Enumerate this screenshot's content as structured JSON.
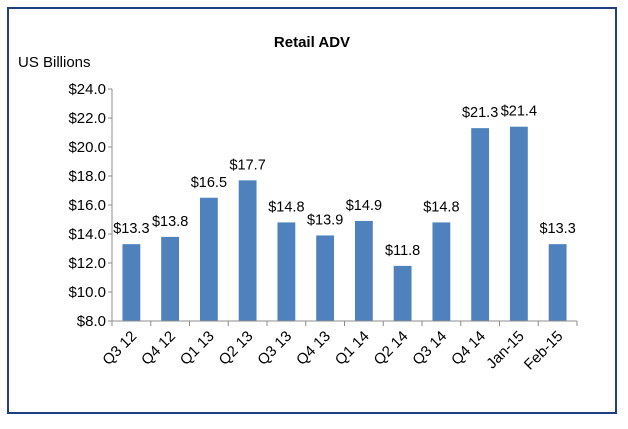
{
  "chart_data": {
    "type": "bar",
    "title": "Retail ADV",
    "ylabel": "US Billions",
    "xlabel": "",
    "categories": [
      "Q3 12",
      "Q4 12",
      "Q1 13",
      "Q2 13",
      "Q3 13",
      "Q4 13",
      "Q1 14",
      "Q2 14",
      "Q3 14",
      "Q4 14",
      "Jan-15",
      "Feb-15"
    ],
    "values": [
      13.3,
      13.8,
      16.5,
      17.7,
      14.8,
      13.9,
      14.9,
      11.8,
      14.8,
      21.3,
      21.4,
      13.3
    ],
    "data_labels": [
      "$13.3",
      "$13.8",
      "$16.5",
      "$17.7",
      "$14.8",
      "$13.9",
      "$14.9",
      "$11.8",
      "$14.8",
      "$21.3",
      "$21.4",
      "$13.3"
    ],
    "yticks": [
      "$8.0",
      "$10.0",
      "$12.0",
      "$14.0",
      "$16.0",
      "$18.0",
      "$20.0",
      "$22.0",
      "$24.0"
    ],
    "ylim": [
      8,
      24
    ],
    "grid": false,
    "legend": "none",
    "bar_color": "#4f81bd",
    "frame_color": "#1f3f7f"
  }
}
